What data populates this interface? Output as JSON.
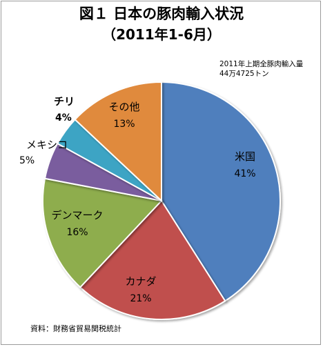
{
  "chart_data": {
    "type": "pie",
    "title": "図１ 日本の豚肉輸入状況",
    "subtitle": "（2011年1-6月）",
    "slices": [
      {
        "label": "米国",
        "value": 41,
        "value_label": "41%",
        "color": "#4f7fbd"
      },
      {
        "label": "カナダ",
        "value": 21,
        "value_label": "21%",
        "color": "#c0504d"
      },
      {
        "label": "デンマーク",
        "value": 16,
        "value_label": "16%",
        "color": "#8ead4d"
      },
      {
        "label": "メキシコ",
        "value": 5,
        "value_label": "5%",
        "color": "#7a5d9e"
      },
      {
        "label": "チリ",
        "value": 4,
        "value_label": "4%",
        "color": "#3ea4c4"
      },
      {
        "label": "その他",
        "value": 13,
        "value_label": "13%",
        "color": "#e08a3c"
      }
    ],
    "annotation": {
      "line1": "2011年上期全豚肉輸入量",
      "line2": "44万4725トン"
    },
    "source": "資料：財務省貿易関税統計"
  }
}
